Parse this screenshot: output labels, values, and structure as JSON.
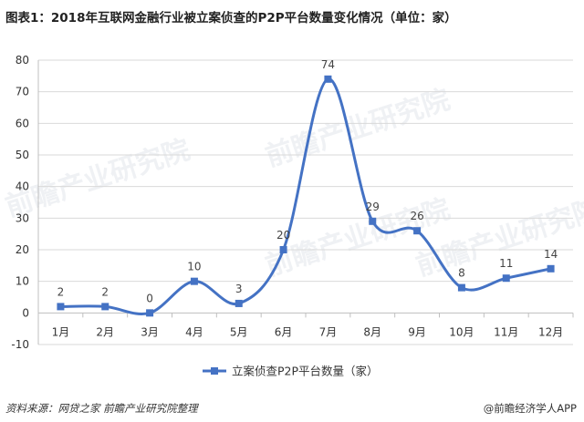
{
  "title": "图表1：2018年互联网金融行业被立案侦查的P2P平台数量变化情况（单位：家）",
  "source": "资料来源：网贷之家  前瞻产业研究院整理",
  "logo_text": "@前瞻经济学人APP",
  "watermark": "前瞻产业研究院",
  "colors": {
    "series": "#4472c4",
    "grid": "#d9d9d9",
    "axis": "#bfbfbf"
  },
  "chart_data": {
    "type": "line",
    "title": "图表1：2018年互联网金融行业被立案侦查的P2P平台数量变化情况（单位：家）",
    "xlabel": "",
    "ylabel": "",
    "categories": [
      "1月",
      "2月",
      "3月",
      "4月",
      "5月",
      "6月",
      "7月",
      "8月",
      "9月",
      "10月",
      "11月",
      "12月"
    ],
    "series": [
      {
        "name": "立案侦查P2P平台数量（家）",
        "values": [
          2,
          2,
          0,
          10,
          3,
          20,
          74,
          29,
          26,
          8,
          11,
          14
        ]
      }
    ],
    "ylim": [
      -10,
      80
    ],
    "yticks": [
      -10,
      0,
      10,
      20,
      30,
      40,
      50,
      60,
      70,
      80
    ],
    "grid": true,
    "smooth": true,
    "data_labels": true,
    "legend_position": "bottom"
  }
}
